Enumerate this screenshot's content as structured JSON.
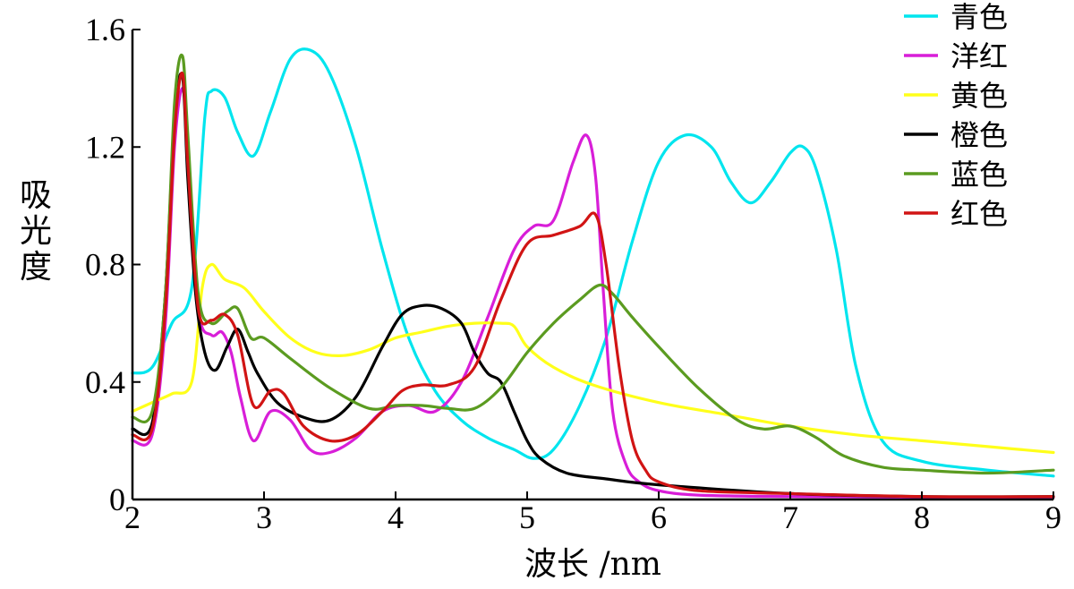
{
  "chart_data": {
    "type": "line",
    "xlabel": "波长 /nm",
    "ylabel": "吸光度",
    "xlim": [
      2,
      9
    ],
    "ylim": [
      0,
      1.6
    ],
    "xticks": [
      "2",
      "3",
      "4",
      "5",
      "6",
      "7",
      "8",
      "9"
    ],
    "yticks": [
      "0",
      "0.4",
      "0.8",
      "1.2",
      "1.6"
    ],
    "legend_position": "top-right",
    "grid": false,
    "series": [
      {
        "name": "青色",
        "color": "#00e5ee",
        "x": [
          2.0,
          2.15,
          2.3,
          2.45,
          2.55,
          2.6,
          2.7,
          2.8,
          2.92,
          3.05,
          3.2,
          3.35,
          3.5,
          3.7,
          3.9,
          4.1,
          4.3,
          4.5,
          4.7,
          4.9,
          5.05,
          5.2,
          5.4,
          5.6,
          5.8,
          6.0,
          6.2,
          6.4,
          6.55,
          6.7,
          6.85,
          7.0,
          7.1,
          7.2,
          7.35,
          7.5,
          7.7,
          8.0,
          8.5,
          9.0
        ],
        "y": [
          0.43,
          0.45,
          0.6,
          0.72,
          1.3,
          1.39,
          1.37,
          1.25,
          1.17,
          1.32,
          1.5,
          1.53,
          1.45,
          1.2,
          0.85,
          0.55,
          0.37,
          0.27,
          0.21,
          0.17,
          0.14,
          0.17,
          0.32,
          0.55,
          0.88,
          1.15,
          1.24,
          1.2,
          1.08,
          1.01,
          1.08,
          1.18,
          1.2,
          1.12,
          0.85,
          0.45,
          0.2,
          0.13,
          0.1,
          0.08
        ]
      },
      {
        "name": "洋红",
        "color": "#d81ed8",
        "x": [
          2.0,
          2.15,
          2.25,
          2.32,
          2.38,
          2.42,
          2.5,
          2.6,
          2.68,
          2.75,
          2.82,
          2.92,
          3.05,
          3.2,
          3.35,
          3.5,
          3.7,
          3.9,
          4.1,
          4.3,
          4.5,
          4.7,
          4.9,
          5.05,
          5.2,
          5.35,
          5.45,
          5.52,
          5.58,
          5.65,
          5.75,
          5.85,
          6.0,
          6.3,
          7.0,
          8.0,
          9.0
        ],
        "y": [
          0.2,
          0.22,
          0.6,
          1.2,
          1.4,
          1.2,
          0.65,
          0.56,
          0.57,
          0.5,
          0.35,
          0.2,
          0.3,
          0.27,
          0.17,
          0.16,
          0.21,
          0.3,
          0.32,
          0.3,
          0.4,
          0.62,
          0.85,
          0.93,
          0.95,
          1.15,
          1.24,
          1.1,
          0.7,
          0.3,
          0.12,
          0.06,
          0.03,
          0.015,
          0.01,
          0.008,
          0.008
        ]
      },
      {
        "name": "黄色",
        "color": "#ffff1a",
        "x": [
          2.0,
          2.15,
          2.3,
          2.45,
          2.53,
          2.6,
          2.7,
          2.85,
          3.0,
          3.2,
          3.4,
          3.6,
          3.8,
          4.0,
          4.2,
          4.4,
          4.6,
          4.8,
          4.9,
          5.0,
          5.2,
          5.5,
          6.0,
          6.5,
          7.0,
          7.5,
          8.0,
          8.5,
          9.0
        ],
        "y": [
          0.3,
          0.33,
          0.36,
          0.4,
          0.72,
          0.8,
          0.75,
          0.72,
          0.64,
          0.55,
          0.5,
          0.49,
          0.51,
          0.55,
          0.57,
          0.59,
          0.6,
          0.6,
          0.59,
          0.52,
          0.45,
          0.39,
          0.33,
          0.29,
          0.25,
          0.22,
          0.2,
          0.18,
          0.16
        ]
      },
      {
        "name": "橙色",
        "color": "#000000",
        "x": [
          2.0,
          2.15,
          2.25,
          2.32,
          2.38,
          2.42,
          2.48,
          2.55,
          2.63,
          2.72,
          2.8,
          2.88,
          2.95,
          3.1,
          3.3,
          3.5,
          3.7,
          3.9,
          4.05,
          4.2,
          4.35,
          4.5,
          4.6,
          4.7,
          4.8,
          4.9,
          5.0,
          5.1,
          5.3,
          5.6,
          6.0,
          7.0,
          8.0,
          9.0
        ],
        "y": [
          0.24,
          0.26,
          0.7,
          1.3,
          1.44,
          1.1,
          0.7,
          0.5,
          0.44,
          0.52,
          0.58,
          0.5,
          0.43,
          0.33,
          0.28,
          0.27,
          0.35,
          0.52,
          0.63,
          0.66,
          0.65,
          0.6,
          0.5,
          0.43,
          0.4,
          0.3,
          0.2,
          0.14,
          0.09,
          0.07,
          0.05,
          0.02,
          0.01,
          0.01
        ]
      },
      {
        "name": "蓝色",
        "color": "#5b9b20",
        "x": [
          2.0,
          2.15,
          2.25,
          2.32,
          2.38,
          2.42,
          2.5,
          2.6,
          2.72,
          2.8,
          2.9,
          3.0,
          3.2,
          3.5,
          3.8,
          4.0,
          4.2,
          4.4,
          4.6,
          4.8,
          5.0,
          5.2,
          5.4,
          5.55,
          5.65,
          5.8,
          6.0,
          6.3,
          6.6,
          6.8,
          7.0,
          7.2,
          7.4,
          7.7,
          8.0,
          8.5,
          9.0
        ],
        "y": [
          0.28,
          0.3,
          0.7,
          1.35,
          1.51,
          1.25,
          0.7,
          0.6,
          0.64,
          0.65,
          0.55,
          0.55,
          0.48,
          0.38,
          0.31,
          0.32,
          0.32,
          0.31,
          0.31,
          0.38,
          0.5,
          0.6,
          0.68,
          0.73,
          0.7,
          0.62,
          0.52,
          0.38,
          0.27,
          0.24,
          0.25,
          0.21,
          0.15,
          0.11,
          0.1,
          0.09,
          0.1
        ]
      },
      {
        "name": "红色",
        "color": "#d11414",
        "x": [
          2.0,
          2.15,
          2.25,
          2.32,
          2.38,
          2.42,
          2.5,
          2.6,
          2.7,
          2.8,
          2.92,
          3.05,
          3.15,
          3.3,
          3.5,
          3.7,
          3.9,
          4.05,
          4.2,
          4.4,
          4.6,
          4.8,
          5.0,
          5.2,
          5.4,
          5.52,
          5.6,
          5.7,
          5.8,
          5.9,
          6.0,
          6.3,
          7.0,
          8.0,
          9.0
        ],
        "y": [
          0.22,
          0.24,
          0.65,
          1.25,
          1.45,
          1.15,
          0.65,
          0.61,
          0.63,
          0.56,
          0.32,
          0.37,
          0.36,
          0.25,
          0.2,
          0.22,
          0.3,
          0.37,
          0.39,
          0.39,
          0.45,
          0.68,
          0.87,
          0.9,
          0.93,
          0.97,
          0.8,
          0.45,
          0.2,
          0.1,
          0.06,
          0.03,
          0.02,
          0.01,
          0.01
        ]
      }
    ]
  }
}
